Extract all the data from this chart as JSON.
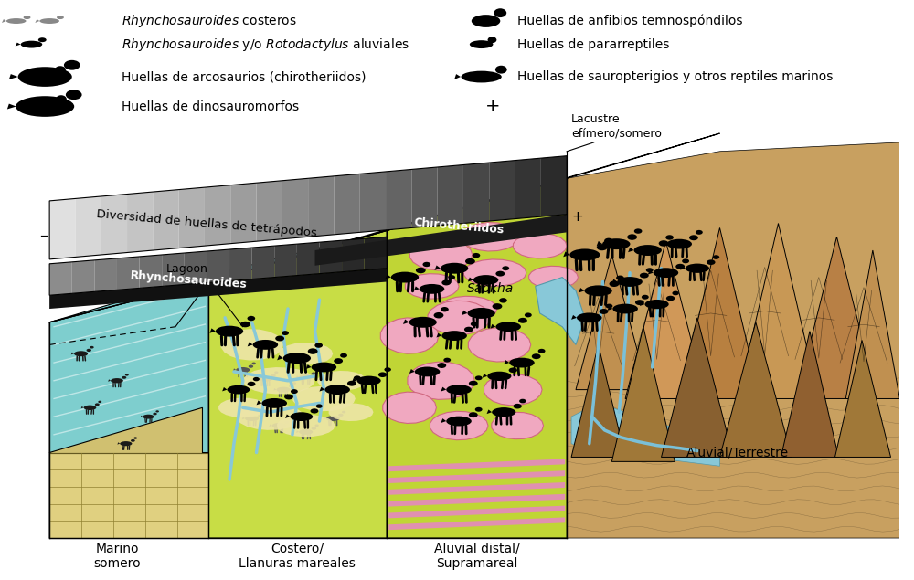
{
  "colors": {
    "sea_top": "#7ECECE",
    "sea_side": "#5AADBD",
    "sea_water": "#7ECECE",
    "brick_face": "#E8D890",
    "coastal_top": "#CEDD50",
    "coastal_front": "#B8CC40",
    "coastal_cream": "#EDE0A0",
    "sabkha_top": "#CEDD40",
    "sabkha_front": "#B0C830",
    "sabkha_pink": "#F0A0C0",
    "aluvial_brown_bg": "#C8A060",
    "mountain_light": "#C0935A",
    "mountain_dark": "#8B6044",
    "mountain_shadow": "#6B4824",
    "river_blue": "#7AC0D8",
    "stripe_pink": "#E090B8",
    "white": "#FFFFFF",
    "black": "#000000",
    "brick_mortar": "#D0C070"
  },
  "legend_left": [
    {
      "label_italic": "Rhynchosauroides",
      "label_normal": " costeros"
    },
    {
      "label_italic": "Rhynchosauroides",
      "label_normal": " y/o ",
      "label_italic2": "Rotodactylus",
      "label_normal2": " aluviales"
    },
    {
      "label_normal": "Huellas de arcosaurios (chirotheriidos)"
    },
    {
      "label_normal": "Huellas de dinosauromorfos"
    }
  ],
  "legend_right": [
    {
      "label_normal": "Huellas de anfibios temnospóndilos"
    },
    {
      "label_normal": "Huellas de pararreptiles"
    },
    {
      "label_normal": "Huellas de sauropterigios y otros reptiles marinos"
    }
  ],
  "gradient_bar": {
    "label_top": "Diversidad de huellas de tetrápodos",
    "label_dark": "Chirotheriidos",
    "label_lower": "Rhynchosauroides",
    "minus_sign": "–",
    "plus_sign": "+"
  },
  "env_labels": {
    "marino": "Marino\nsomero",
    "costero": "Costero/\nLlanuras mareales",
    "aluvial_distal": "Aluvial distal/\nSupramareal",
    "aluvial_terrestre": "Aluvial/Terrestre",
    "lagoon": "Lagoon",
    "sabkha": "Sabkha",
    "lacustre": "Lacustre\nefímero/somero"
  }
}
